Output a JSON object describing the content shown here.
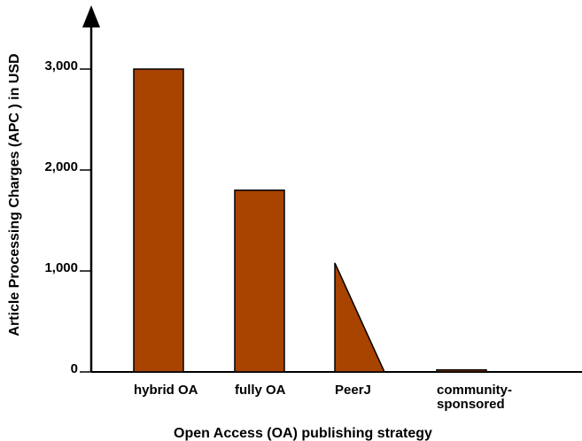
{
  "chart_data": {
    "type": "bar",
    "title": "",
    "xlabel": "Open Access (OA) publishing strategy",
    "ylabel": "Article Processing Charges (APC ) in USD",
    "ylim": [
      0,
      3700
    ],
    "yticks": [
      {
        "value": 0,
        "label": "0"
      },
      {
        "value": 1000,
        "label": "1,000"
      },
      {
        "value": 2000,
        "label": "2,000"
      },
      {
        "value": 3000,
        "label": "3,000"
      }
    ],
    "categories": [
      {
        "label_lines": [
          "hybrid OA"
        ],
        "value": 3000,
        "shape": "rectangle"
      },
      {
        "label_lines": [
          "fully OA"
        ],
        "value": 1800,
        "shape": "rectangle"
      },
      {
        "label_lines": [
          "PeerJ"
        ],
        "value": 1080,
        "shape": "right-triangle"
      },
      {
        "label_lines": [
          "community-",
          "sponsored"
        ],
        "value": 20,
        "shape": "rectangle"
      }
    ],
    "grid": false,
    "legend": "none",
    "bar_color": "#a84300",
    "axis_color": "#000000"
  }
}
